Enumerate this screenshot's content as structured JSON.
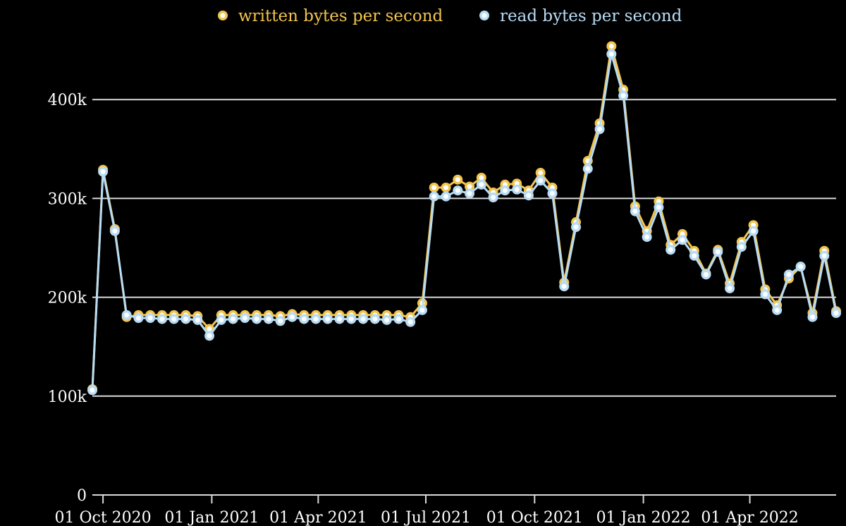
{
  "chart_data": {
    "type": "line",
    "title": "",
    "xlabel": "",
    "ylabel": "",
    "ylim": [
      0,
      450000
    ],
    "yticks": [
      0,
      100000,
      200000,
      300000,
      400000
    ],
    "ytick_labels": [
      "0",
      "100k",
      "200k",
      "300k",
      "400k"
    ],
    "xlim": [
      "2020-09-22",
      "2022-06-13"
    ],
    "xticks": [
      "2020-10-01",
      "2021-01-01",
      "2021-04-01",
      "2021-07-01",
      "2021-10-01",
      "2022-01-01",
      "2022-04-01"
    ],
    "xtick_labels": [
      "01 Oct 2020",
      "01 Jan 2021",
      "01 Apr 2021",
      "01 Jul 2021",
      "01 Oct 2021",
      "01 Jan 2022",
      "01 Apr 2022"
    ],
    "grid": true,
    "legend": "top",
    "x": [
      "2020-09-22",
      "2020-10-01",
      "2020-10-11",
      "2020-10-21",
      "2020-10-31",
      "2020-11-10",
      "2020-11-20",
      "2020-11-30",
      "2020-12-10",
      "2020-12-20",
      "2020-12-30",
      "2021-01-09",
      "2021-01-19",
      "2021-01-29",
      "2021-02-08",
      "2021-02-18",
      "2021-02-28",
      "2021-03-10",
      "2021-03-20",
      "2021-03-30",
      "2021-04-09",
      "2021-04-19",
      "2021-04-29",
      "2021-05-09",
      "2021-05-19",
      "2021-05-29",
      "2021-06-08",
      "2021-06-18",
      "2021-06-28",
      "2021-07-08",
      "2021-07-18",
      "2021-07-28",
      "2021-08-07",
      "2021-08-17",
      "2021-08-27",
      "2021-09-06",
      "2021-09-16",
      "2021-09-26",
      "2021-10-06",
      "2021-10-16",
      "2021-10-26",
      "2021-11-05",
      "2021-11-15",
      "2021-11-25",
      "2021-12-05",
      "2021-12-15",
      "2021-12-25",
      "2022-01-04",
      "2022-01-14",
      "2022-01-24",
      "2022-02-03",
      "2022-02-13",
      "2022-02-23",
      "2022-03-05",
      "2022-03-15",
      "2022-03-25",
      "2022-04-04",
      "2022-04-14",
      "2022-04-24",
      "2022-05-04",
      "2022-05-14",
      "2022-05-24",
      "2022-06-03",
      "2022-06-13"
    ],
    "series": [
      {
        "name": "written bytes per second",
        "color": "#f2c44d",
        "values": [
          107000,
          329000,
          269000,
          180000,
          182000,
          182000,
          182000,
          182000,
          182000,
          181000,
          168000,
          182000,
          182000,
          182000,
          182000,
          182000,
          181000,
          183000,
          182000,
          182000,
          182000,
          182000,
          182000,
          182000,
          182000,
          182000,
          182000,
          180000,
          194000,
          311000,
          311000,
          319000,
          312000,
          321000,
          306000,
          314000,
          315000,
          308000,
          326000,
          311000,
          215000,
          276000,
          338000,
          376000,
          454000,
          410000,
          292000,
          267000,
          297000,
          253000,
          264000,
          247000,
          224000,
          248000,
          214000,
          256000,
          273000,
          208000,
          192000,
          219000,
          231000,
          184000,
          247000,
          186000
        ]
      },
      {
        "name": "read bytes per second",
        "color": "#b8dcf5",
        "values": [
          106000,
          327000,
          267000,
          182000,
          179000,
          179000,
          178000,
          178000,
          178000,
          177000,
          161000,
          177000,
          178000,
          179000,
          178000,
          178000,
          176000,
          180000,
          178000,
          178000,
          178000,
          178000,
          178000,
          178000,
          178000,
          177000,
          178000,
          175000,
          187000,
          302000,
          302000,
          308000,
          305000,
          314000,
          301000,
          308000,
          309000,
          303000,
          318000,
          305000,
          211000,
          271000,
          330000,
          370000,
          446000,
          404000,
          287000,
          261000,
          291000,
          248000,
          258000,
          242000,
          223000,
          246000,
          209000,
          251000,
          267000,
          203000,
          187000,
          223000,
          231000,
          180000,
          242000,
          184000
        ]
      }
    ]
  }
}
